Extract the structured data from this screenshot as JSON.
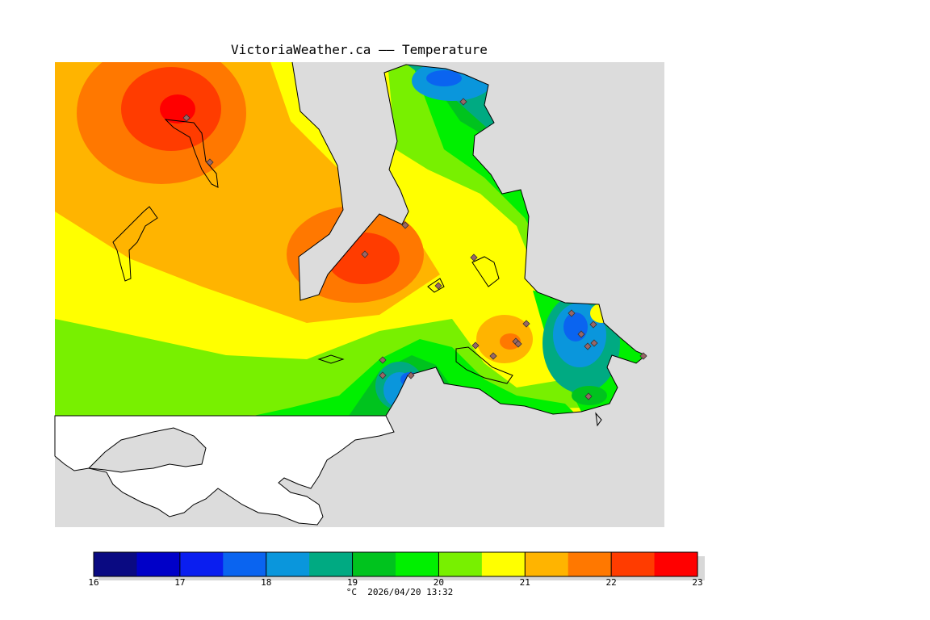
{
  "title": "VictoriaWeather.ca —— Temperature",
  "colorbar": {
    "ticks": [
      "16",
      "17",
      "18",
      "19",
      "20",
      "21",
      "22",
      "23"
    ],
    "unit_date": "°C  2026/04/20 13:32",
    "colors": [
      "#0a0a82",
      "#0000c8",
      "#0a1ef0",
      "#0a64f0",
      "#0a96dc",
      "#00aa82",
      "#00c31e",
      "#00f000",
      "#78f000",
      "#ffff00",
      "#ffb400",
      "#ff7800",
      "#ff3c00",
      "#ff0000"
    ]
  },
  "map": {
    "background": "#dcdcdc",
    "station_marker": "diamond-icon",
    "station_count": 22
  }
}
